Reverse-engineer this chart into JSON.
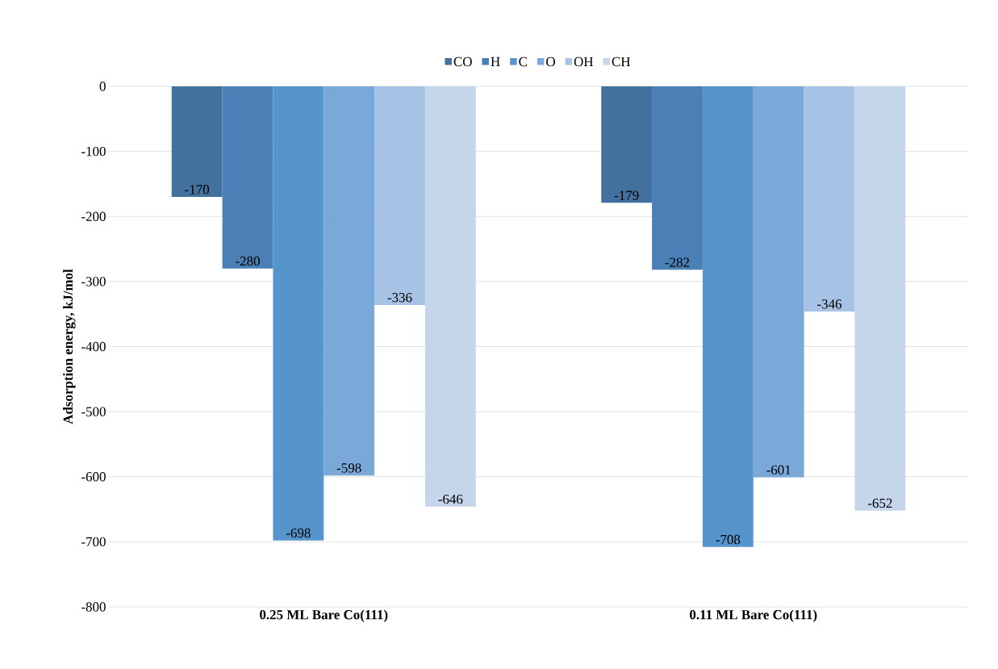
{
  "chart_data": {
    "type": "bar",
    "ylabel": "Adsorption energy, kJ/mol",
    "categories": [
      "0.25 ML Bare Co(111)",
      "0.11 ML Bare Co(111)"
    ],
    "series": [
      {
        "name": "CO",
        "color": "#41719c",
        "values": [
          -170,
          -179
        ]
      },
      {
        "name": "H",
        "color": "#4a80b6",
        "values": [
          -280,
          -282
        ]
      },
      {
        "name": "C",
        "color": "#5694cc",
        "values": [
          -698,
          -708
        ]
      },
      {
        "name": "O",
        "color": "#7aa8d9",
        "values": [
          -598,
          -601
        ]
      },
      {
        "name": "OH",
        "color": "#a6c2e5",
        "values": [
          -336,
          -346
        ]
      },
      {
        "name": "CH",
        "color": "#c5d5ea",
        "values": [
          -646,
          -652
        ]
      }
    ],
    "ylim": [
      -800,
      0
    ],
    "yticks": [
      -800,
      -700,
      -600,
      -500,
      -400,
      -300,
      -200,
      -100,
      0
    ],
    "grid": "y",
    "legend": "top",
    "data_labels": true
  }
}
